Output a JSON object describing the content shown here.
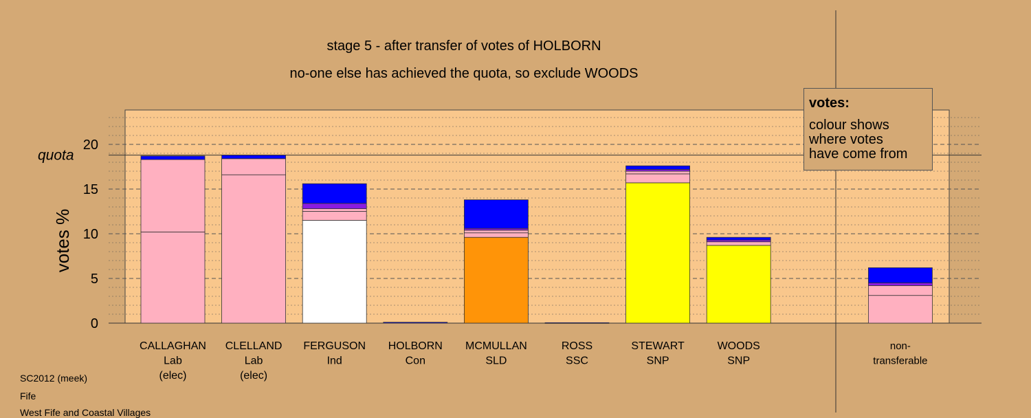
{
  "chart_data": {
    "type": "bar",
    "stacked": true,
    "title": "stage 5 - after transfer of votes of HOLBORN",
    "subtitle": "no-one else has achieved the quota, so exclude WOODS",
    "ylabel": "votes %",
    "ylim": [
      0,
      24
    ],
    "yticks": [
      0,
      5,
      10,
      15,
      20
    ],
    "quota": 18.8,
    "quota_label": "quota",
    "grid": true,
    "colors": {
      "background": "#d4a975",
      "plot_background": "#f9c78c",
      "pink": "#ffb0c0",
      "white": "#ffffff",
      "orange": "#ff9408",
      "yellow": "#ffff00",
      "purple": "#8a1ce0",
      "blue": "#0000ff"
    },
    "categories": [
      {
        "name": "CALLAGHAN",
        "party": "Lab",
        "status": "(elec)"
      },
      {
        "name": "CLELLAND",
        "party": "Lab",
        "status": "(elec)"
      },
      {
        "name": "FERGUSON",
        "party": "Ind",
        "status": ""
      },
      {
        "name": "HOLBORN",
        "party": "Con",
        "status": ""
      },
      {
        "name": "MCMULLAN",
        "party": "SLD",
        "status": ""
      },
      {
        "name": "ROSS",
        "party": "SSC",
        "status": ""
      },
      {
        "name": "STEWART",
        "party": "SNP",
        "status": ""
      },
      {
        "name": "WOODS",
        "party": "SNP",
        "status": ""
      },
      {
        "name": "",
        "party": "",
        "status": ""
      },
      {
        "name": "non-",
        "party": "transferable",
        "status": ""
      }
    ],
    "stacks": [
      [
        {
          "value": 10.2,
          "color": "pink"
        },
        {
          "value": 8.1,
          "color": "pink"
        },
        {
          "value": 0.4,
          "color": "blue"
        }
      ],
      [
        {
          "value": 16.6,
          "color": "pink"
        },
        {
          "value": 1.8,
          "color": "pink"
        },
        {
          "value": 0.4,
          "color": "blue"
        }
      ],
      [
        {
          "value": 11.5,
          "color": "white"
        },
        {
          "value": 1.0,
          "color": "pink"
        },
        {
          "value": 0.3,
          "color": "pink"
        },
        {
          "value": 0.6,
          "color": "purple"
        },
        {
          "value": 2.2,
          "color": "blue"
        }
      ],
      [
        {
          "value": 0.1,
          "color": "blue"
        }
      ],
      [
        {
          "value": 9.6,
          "color": "orange"
        },
        {
          "value": 0.5,
          "color": "pink"
        },
        {
          "value": 0.3,
          "color": "pink"
        },
        {
          "value": 0.2,
          "color": "purple"
        },
        {
          "value": 3.2,
          "color": "blue"
        }
      ],
      [
        {
          "value": 0.05,
          "color": "blue"
        }
      ],
      [
        {
          "value": 15.7,
          "color": "yellow"
        },
        {
          "value": 1.0,
          "color": "pink"
        },
        {
          "value": 0.3,
          "color": "pink"
        },
        {
          "value": 0.2,
          "color": "purple"
        },
        {
          "value": 0.4,
          "color": "blue"
        }
      ],
      [
        {
          "value": 8.7,
          "color": "yellow"
        },
        {
          "value": 0.4,
          "color": "pink"
        },
        {
          "value": 0.2,
          "color": "purple"
        },
        {
          "value": 0.3,
          "color": "blue"
        }
      ],
      [],
      [
        {
          "value": 3.1,
          "color": "pink"
        },
        {
          "value": 1.1,
          "color": "pink"
        },
        {
          "value": 0.3,
          "color": "purple"
        },
        {
          "value": 1.7,
          "color": "blue"
        }
      ]
    ]
  },
  "legend": {
    "title": "votes:",
    "lines": [
      "colour shows",
      "where votes",
      "have come from"
    ]
  },
  "footer": {
    "line1": "SC2012 (meek)",
    "line2": "Fife",
    "line3": "West Fife and Coastal Villages"
  }
}
